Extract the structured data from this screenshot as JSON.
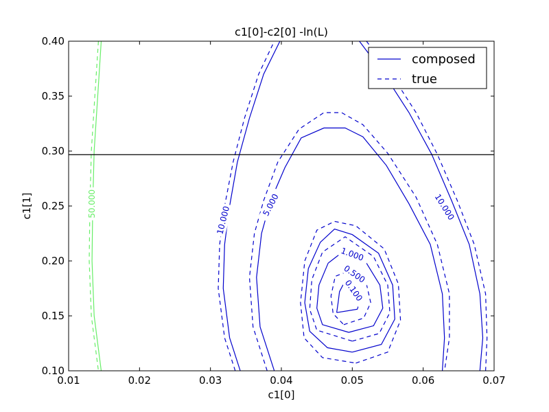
{
  "chart_data": {
    "type": "contour",
    "title": "c1[0]-c2[0] -ln(L)",
    "xlabel": "c1[0]",
    "ylabel": "c1[1]",
    "xlim": [
      0.01,
      0.07
    ],
    "ylim": [
      0.1,
      0.4
    ],
    "xticks": [
      0.01,
      0.02,
      0.03,
      0.04,
      0.05,
      0.06,
      0.07
    ],
    "xtick_labels": [
      "0.01",
      "0.02",
      "0.03",
      "0.04",
      "0.05",
      "0.06",
      "0.07"
    ],
    "yticks": [
      0.1,
      0.15,
      0.2,
      0.25,
      0.3,
      0.35,
      0.4
    ],
    "ytick_labels": [
      "0.10",
      "0.15",
      "0.20",
      "0.25",
      "0.30",
      "0.35",
      "0.40"
    ],
    "grid": false,
    "legend": {
      "placement": "top-right",
      "entries": [
        {
          "label": "composed",
          "style": "solid",
          "color": "#0000cc"
        },
        {
          "label": "true",
          "style": "dashed",
          "color": "#0000cc"
        }
      ]
    },
    "hline": {
      "y": 0.2967,
      "color": "#000000"
    },
    "colors": {
      "main": "#0000cc",
      "outer": "#66ee66"
    },
    "contours": [
      {
        "level": "0.100",
        "label_text": "0.100",
        "color": "#0000cc",
        "solid": [
          [
            0.0478,
            0.153
          ],
          [
            0.0507,
            0.156
          ],
          [
            0.0512,
            0.165
          ],
          [
            0.0505,
            0.176
          ],
          [
            0.049,
            0.182
          ],
          [
            0.0482,
            0.172
          ],
          [
            0.048,
            0.162
          ],
          [
            0.0478,
            0.153
          ]
        ],
        "dashed": [
          [
            0.0488,
            0.142
          ],
          [
            0.0516,
            0.148
          ],
          [
            0.0526,
            0.162
          ],
          [
            0.052,
            0.179
          ],
          [
            0.05,
            0.192
          ],
          [
            0.0476,
            0.186
          ],
          [
            0.047,
            0.168
          ],
          [
            0.0473,
            0.152
          ],
          [
            0.0488,
            0.142
          ]
        ],
        "label": {
          "x": 0.0502,
          "y": 0.173,
          "angle": 55
        }
      },
      {
        "level": "0.500",
        "label_text": "0.500",
        "color": "#0000cc",
        "solid": [
          [
            0.0495,
            0.135
          ],
          [
            0.053,
            0.141
          ],
          [
            0.0543,
            0.157
          ],
          [
            0.0539,
            0.178
          ],
          [
            0.052,
            0.198
          ],
          [
            0.049,
            0.21
          ],
          [
            0.0466,
            0.198
          ],
          [
            0.0453,
            0.178
          ],
          [
            0.045,
            0.157
          ],
          [
            0.0458,
            0.142
          ],
          [
            0.0495,
            0.135
          ]
        ],
        "dashed": [
          [
            0.05,
            0.127
          ],
          [
            0.0538,
            0.134
          ],
          [
            0.0553,
            0.153
          ],
          [
            0.055,
            0.178
          ],
          [
            0.053,
            0.204
          ],
          [
            0.049,
            0.222
          ],
          [
            0.0458,
            0.208
          ],
          [
            0.0443,
            0.183
          ],
          [
            0.044,
            0.156
          ],
          [
            0.045,
            0.137
          ],
          [
            0.05,
            0.127
          ]
        ],
        "label": {
          "x": 0.0503,
          "y": 0.188,
          "angle": 35
        }
      },
      {
        "level": "1.000",
        "label_text": "1.000",
        "color": "#0000cc",
        "solid": [
          [
            0.05,
            0.117
          ],
          [
            0.0541,
            0.124
          ],
          [
            0.056,
            0.147
          ],
          [
            0.0557,
            0.178
          ],
          [
            0.0537,
            0.207
          ],
          [
            0.05,
            0.224
          ],
          [
            0.0475,
            0.229
          ],
          [
            0.0455,
            0.217
          ],
          [
            0.0438,
            0.193
          ],
          [
            0.0433,
            0.162
          ],
          [
            0.044,
            0.136
          ],
          [
            0.0465,
            0.121
          ],
          [
            0.05,
            0.117
          ]
        ],
        "dashed": [
          [
            0.0505,
            0.107
          ],
          [
            0.055,
            0.117
          ],
          [
            0.0568,
            0.146
          ],
          [
            0.0565,
            0.179
          ],
          [
            0.0545,
            0.211
          ],
          [
            0.0505,
            0.232
          ],
          [
            0.0475,
            0.236
          ],
          [
            0.045,
            0.228
          ],
          [
            0.0433,
            0.2
          ],
          [
            0.0427,
            0.162
          ],
          [
            0.0432,
            0.13
          ],
          [
            0.0458,
            0.112
          ],
          [
            0.0505,
            0.107
          ]
        ],
        "label": {
          "x": 0.05,
          "y": 0.206,
          "angle": 20
        }
      },
      {
        "level": "5.000",
        "label_text": "5.000",
        "color": "#0000cc",
        "solid": [
          [
            0.039,
            0.1
          ],
          [
            0.037,
            0.14
          ],
          [
            0.0365,
            0.185
          ],
          [
            0.0372,
            0.225
          ],
          [
            0.0385,
            0.255
          ],
          [
            0.0405,
            0.285
          ],
          [
            0.0428,
            0.312
          ],
          [
            0.046,
            0.321
          ],
          [
            0.049,
            0.321
          ],
          [
            0.0515,
            0.313
          ],
          [
            0.0548,
            0.287
          ],
          [
            0.058,
            0.252
          ],
          [
            0.061,
            0.215
          ],
          [
            0.0627,
            0.17
          ],
          [
            0.063,
            0.13
          ],
          [
            0.0627,
            0.1
          ]
        ],
        "dashed": [
          [
            0.038,
            0.1
          ],
          [
            0.036,
            0.14
          ],
          [
            0.0355,
            0.185
          ],
          [
            0.0362,
            0.225
          ],
          [
            0.0375,
            0.255
          ],
          [
            0.0395,
            0.29
          ],
          [
            0.0425,
            0.32
          ],
          [
            0.046,
            0.335
          ],
          [
            0.0485,
            0.335
          ],
          [
            0.0515,
            0.324
          ],
          [
            0.055,
            0.298
          ],
          [
            0.059,
            0.258
          ],
          [
            0.062,
            0.215
          ],
          [
            0.0637,
            0.17
          ],
          [
            0.0637,
            0.13
          ],
          [
            0.063,
            0.1
          ]
        ],
        "label": {
          "x": 0.0385,
          "y": 0.251,
          "angle": -62
        }
      },
      {
        "level": "10.000",
        "label_text": "10.000",
        "color": "#0000cc",
        "solid": [
          [
            0.0342,
            0.1
          ],
          [
            0.0327,
            0.13
          ],
          [
            0.0318,
            0.175
          ],
          [
            0.032,
            0.215
          ],
          [
            0.0327,
            0.25
          ],
          [
            0.0338,
            0.29
          ],
          [
            0.0355,
            0.33
          ],
          [
            0.0375,
            0.37
          ],
          [
            0.0398,
            0.4
          ]
        ],
        "dashed": [
          [
            0.0335,
            0.1
          ],
          [
            0.032,
            0.13
          ],
          [
            0.0311,
            0.175
          ],
          [
            0.0313,
            0.215
          ],
          [
            0.032,
            0.25
          ],
          [
            0.0332,
            0.29
          ],
          [
            0.0348,
            0.33
          ],
          [
            0.0368,
            0.37
          ],
          [
            0.039,
            0.4
          ]
        ],
        "label": {
          "x": 0.0318,
          "y": 0.237,
          "angle": -76
        }
      },
      {
        "level": "10.000",
        "label_text": "10.000",
        "color": "#0000cc",
        "solid": [
          [
            0.051,
            0.4
          ],
          [
            0.0545,
            0.37
          ],
          [
            0.058,
            0.335
          ],
          [
            0.0612,
            0.297
          ],
          [
            0.064,
            0.255
          ],
          [
            0.0665,
            0.215
          ],
          [
            0.068,
            0.17
          ],
          [
            0.0684,
            0.13
          ],
          [
            0.068,
            0.1
          ]
        ],
        "dashed": [
          [
            0.052,
            0.4
          ],
          [
            0.0555,
            0.37
          ],
          [
            0.059,
            0.335
          ],
          [
            0.062,
            0.297
          ],
          [
            0.0648,
            0.255
          ],
          [
            0.0672,
            0.215
          ],
          [
            0.0688,
            0.17
          ],
          [
            0.069,
            0.13
          ],
          [
            0.0688,
            0.1
          ]
        ],
        "label": {
          "x": 0.063,
          "y": 0.249,
          "angle": 58
        }
      },
      {
        "level": "50.000",
        "label_text": "50.000",
        "color": "#66ee66",
        "solid": [
          [
            0.0146,
            0.4
          ],
          [
            0.0141,
            0.35
          ],
          [
            0.0136,
            0.3
          ],
          [
            0.0134,
            0.25
          ],
          [
            0.0133,
            0.2
          ],
          [
            0.0136,
            0.15
          ],
          [
            0.0146,
            0.1
          ]
        ],
        "dashed": [
          [
            0.0142,
            0.4
          ],
          [
            0.0137,
            0.35
          ],
          [
            0.0132,
            0.3
          ],
          [
            0.013,
            0.25
          ],
          [
            0.0129,
            0.2
          ],
          [
            0.0132,
            0.15
          ],
          [
            0.0142,
            0.1
          ]
        ],
        "label": {
          "x": 0.0133,
          "y": 0.252,
          "angle": -90
        }
      }
    ]
  }
}
